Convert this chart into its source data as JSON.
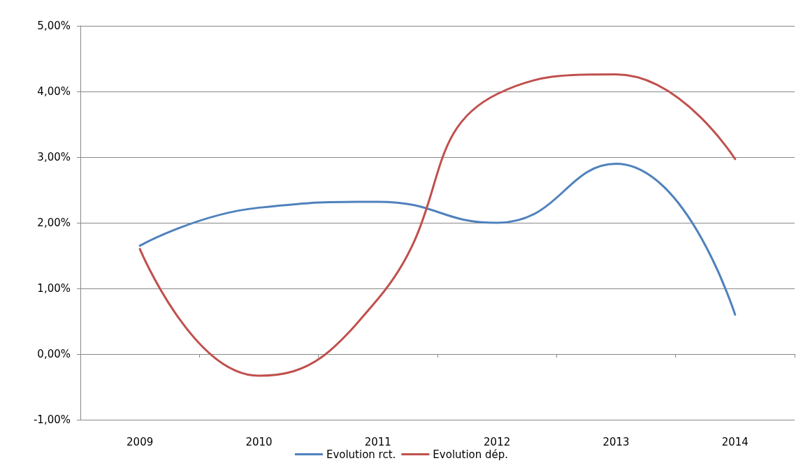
{
  "chart_data": {
    "type": "line",
    "categories": [
      "2009",
      "2010",
      "2011",
      "2012",
      "2013",
      "2014"
    ],
    "series": [
      {
        "name": "Evolution rct.",
        "color": "#4f81bd",
        "values": [
          1.65,
          2.23,
          2.32,
          2.0,
          2.9,
          0.6
        ]
      },
      {
        "name": "Evolution dép.",
        "color": "#c0504d",
        "values": [
          1.6,
          -0.33,
          0.84,
          3.96,
          4.26,
          2.97
        ]
      }
    ],
    "ylim": [
      -1,
      5
    ],
    "yticks": [
      {
        "value": -1,
        "label": "-1,00%"
      },
      {
        "value": 0,
        "label": "0,00%"
      },
      {
        "value": 1,
        "label": "1,00%"
      },
      {
        "value": 2,
        "label": "2,00%"
      },
      {
        "value": 3,
        "label": "3,00%"
      },
      {
        "value": 4,
        "label": "4,00%"
      },
      {
        "value": 5,
        "label": "5,00%"
      }
    ],
    "grid": "y",
    "legend": "bottom",
    "marker": "none",
    "line_style": "solid"
  }
}
